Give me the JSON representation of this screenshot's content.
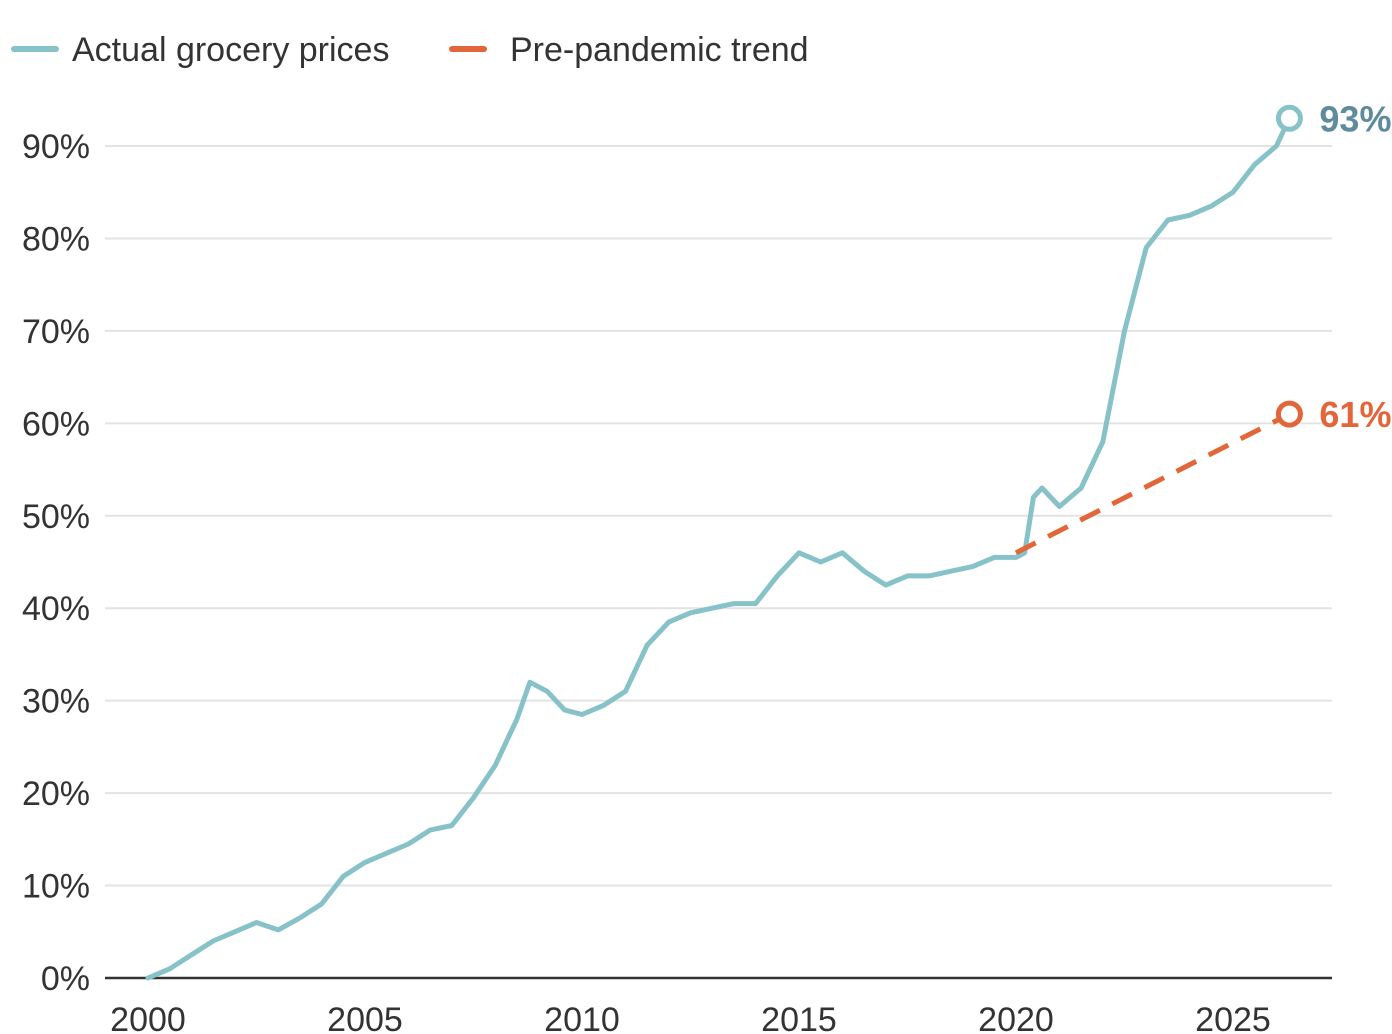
{
  "chart_data": {
    "type": "line",
    "title": "",
    "xlabel": "",
    "ylabel": "",
    "xlim": [
      2000,
      2026.5
    ],
    "ylim": [
      0,
      95
    ],
    "x_ticks": [
      2000,
      2005,
      2010,
      2015,
      2020,
      2025
    ],
    "x_tick_labels": [
      "2000",
      "2005",
      "2010",
      "2015",
      "2020",
      "2025"
    ],
    "y_ticks": [
      0,
      10,
      20,
      30,
      40,
      50,
      60,
      70,
      80,
      90
    ],
    "y_tick_labels": [
      "0%",
      "10%",
      "20%",
      "30%",
      "40%",
      "50%",
      "60%",
      "70%",
      "80%",
      "90%"
    ],
    "grid": "horizontal",
    "legend_position": "top-left",
    "series": [
      {
        "name": "Actual grocery prices",
        "color": "#86c2c7",
        "style": "solid",
        "end_label": "93%",
        "points": [
          [
            2000.0,
            0
          ],
          [
            2000.5,
            1
          ],
          [
            2001.0,
            2.5
          ],
          [
            2001.5,
            4
          ],
          [
            2002.0,
            5
          ],
          [
            2002.5,
            6
          ],
          [
            2003.0,
            5.2
          ],
          [
            2003.5,
            6.5
          ],
          [
            2004.0,
            8
          ],
          [
            2004.5,
            11
          ],
          [
            2005.0,
            12.5
          ],
          [
            2005.5,
            13.5
          ],
          [
            2006.0,
            14.5
          ],
          [
            2006.5,
            16
          ],
          [
            2007.0,
            16.5
          ],
          [
            2007.5,
            19.5
          ],
          [
            2008.0,
            23
          ],
          [
            2008.5,
            28
          ],
          [
            2008.8,
            32
          ],
          [
            2009.2,
            31
          ],
          [
            2009.6,
            29
          ],
          [
            2010.0,
            28.5
          ],
          [
            2010.5,
            29.5
          ],
          [
            2011.0,
            31
          ],
          [
            2011.5,
            36
          ],
          [
            2012.0,
            38.5
          ],
          [
            2012.5,
            39.5
          ],
          [
            2013.0,
            40
          ],
          [
            2013.5,
            40.5
          ],
          [
            2014.0,
            40.5
          ],
          [
            2014.5,
            43.5
          ],
          [
            2015.0,
            46
          ],
          [
            2015.5,
            45
          ],
          [
            2016.0,
            46
          ],
          [
            2016.5,
            44
          ],
          [
            2017.0,
            42.5
          ],
          [
            2017.5,
            43.5
          ],
          [
            2018.0,
            43.5
          ],
          [
            2018.5,
            44
          ],
          [
            2019.0,
            44.5
          ],
          [
            2019.5,
            45.5
          ],
          [
            2020.0,
            45.5
          ],
          [
            2020.2,
            46
          ],
          [
            2020.4,
            52
          ],
          [
            2020.6,
            53
          ],
          [
            2021.0,
            51
          ],
          [
            2021.5,
            53
          ],
          [
            2022.0,
            58
          ],
          [
            2022.5,
            70
          ],
          [
            2023.0,
            79
          ],
          [
            2023.5,
            82
          ],
          [
            2024.0,
            82.5
          ],
          [
            2024.5,
            83.5
          ],
          [
            2025.0,
            85
          ],
          [
            2025.5,
            88
          ],
          [
            2026.0,
            90
          ],
          [
            2026.3,
            93
          ]
        ]
      },
      {
        "name": "Pre-pandemic trend",
        "color": "#e2663a",
        "style": "dashed",
        "end_label": "61%",
        "points": [
          [
            2020.0,
            46
          ],
          [
            2026.3,
            61
          ]
        ]
      }
    ]
  }
}
